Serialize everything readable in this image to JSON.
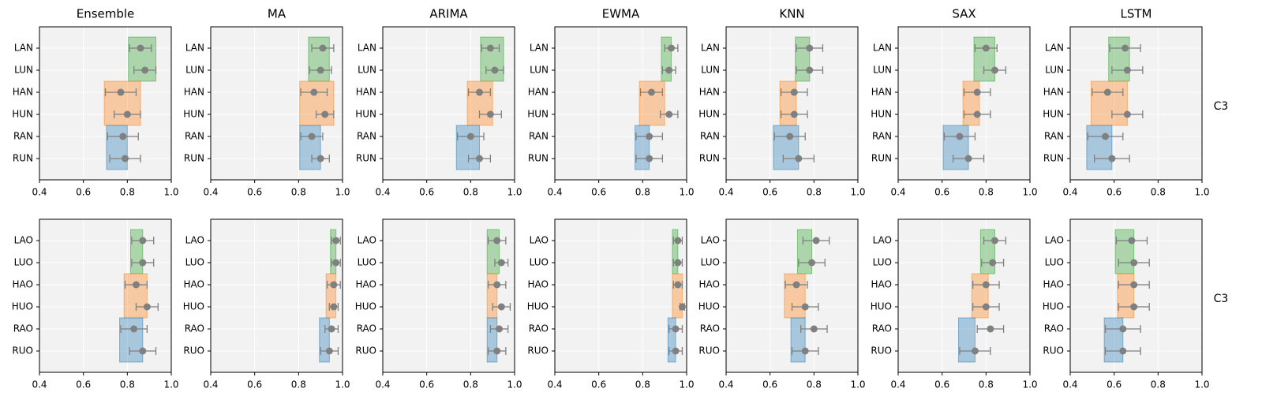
{
  "chart_data": {
    "type": "bar",
    "x_range": [
      0.4,
      1.0
    ],
    "x_ticks": [
      "0.4",
      "0.6",
      "0.8",
      "1.0"
    ],
    "grid": true,
    "colors": {
      "green": "#2ca02c",
      "orange": "#ff7f0e",
      "blue": "#1f77b4",
      "point": "#808080",
      "error": "#808080",
      "background": "#f2f2f2"
    },
    "column_titles": [
      "Ensemble",
      "MA",
      "ARIMA",
      "EWMA",
      "KNN",
      "SAX",
      "LSTM"
    ],
    "rows": [
      {
        "label": "C3",
        "categories": [
          "LAN",
          "LUN",
          "HAN",
          "HUN",
          "RAN",
          "RUN"
        ],
        "panels": [
          {
            "bars": [
              0.93,
              0.86,
              0.8
            ],
            "points": [
              [
                0.86,
                0.05
              ],
              [
                0.88,
                0.05
              ],
              [
                0.77,
                0.07
              ],
              [
                0.8,
                0.06
              ],
              [
                0.78,
                0.07
              ],
              [
                0.79,
                0.07
              ]
            ]
          },
          {
            "bars": [
              0.94,
              0.96,
              0.9
            ],
            "points": [
              [
                0.91,
                0.05
              ],
              [
                0.9,
                0.05
              ],
              [
                0.87,
                0.06
              ],
              [
                0.92,
                0.04
              ],
              [
                0.86,
                0.05
              ],
              [
                0.9,
                0.04
              ]
            ]
          },
          {
            "bars": [
              0.95,
              0.9,
              0.84
            ],
            "points": [
              [
                0.89,
                0.04
              ],
              [
                0.91,
                0.04
              ],
              [
                0.84,
                0.05
              ],
              [
                0.89,
                0.05
              ],
              [
                0.8,
                0.06
              ],
              [
                0.84,
                0.05
              ]
            ]
          },
          {
            "bars": [
              0.93,
              0.9,
              0.83
            ],
            "points": [
              [
                0.93,
                0.03
              ],
              [
                0.92,
                0.03
              ],
              [
                0.84,
                0.05
              ],
              [
                0.92,
                0.04
              ],
              [
                0.83,
                0.06
              ],
              [
                0.83,
                0.06
              ]
            ]
          },
          {
            "bars": [
              0.78,
              0.72,
              0.73
            ],
            "points": [
              [
                0.78,
                0.06
              ],
              [
                0.78,
                0.06
              ],
              [
                0.71,
                0.06
              ],
              [
                0.71,
                0.06
              ],
              [
                0.69,
                0.07
              ],
              [
                0.73,
                0.07
              ]
            ]
          },
          {
            "bars": [
              0.84,
              0.77,
              0.72
            ],
            "points": [
              [
                0.8,
                0.05
              ],
              [
                0.84,
                0.05
              ],
              [
                0.76,
                0.06
              ],
              [
                0.76,
                0.06
              ],
              [
                0.68,
                0.07
              ],
              [
                0.72,
                0.07
              ]
            ]
          },
          {
            "bars": [
              0.67,
              0.66,
              0.59
            ],
            "points": [
              [
                0.65,
                0.07
              ],
              [
                0.66,
                0.07
              ],
              [
                0.57,
                0.07
              ],
              [
                0.66,
                0.07
              ],
              [
                0.56,
                0.08
              ],
              [
                0.59,
                0.08
              ]
            ]
          }
        ]
      },
      {
        "label": "C3",
        "categories": [
          "LAO",
          "LUO",
          "HAO",
          "HUO",
          "RAO",
          "RUO"
        ],
        "panels": [
          {
            "bars": [
              0.87,
              0.89,
              0.87
            ],
            "points": [
              [
                0.87,
                0.05
              ],
              [
                0.87,
                0.05
              ],
              [
                0.84,
                0.05
              ],
              [
                0.89,
                0.05
              ],
              [
                0.83,
                0.06
              ],
              [
                0.87,
                0.06
              ]
            ]
          },
          {
            "bars": [
              0.97,
              0.97,
              0.94
            ],
            "points": [
              [
                0.97,
                0.02
              ],
              [
                0.97,
                0.02
              ],
              [
                0.96,
                0.03
              ],
              [
                0.96,
                0.02
              ],
              [
                0.95,
                0.03
              ],
              [
                0.94,
                0.04
              ]
            ]
          },
          {
            "bars": [
              0.93,
              0.92,
              0.92
            ],
            "points": [
              [
                0.92,
                0.04
              ],
              [
                0.94,
                0.03
              ],
              [
                0.92,
                0.04
              ],
              [
                0.94,
                0.04
              ],
              [
                0.93,
                0.04
              ],
              [
                0.92,
                0.04
              ]
            ]
          },
          {
            "bars": [
              0.96,
              0.98,
              0.95
            ],
            "points": [
              [
                0.96,
                0.02
              ],
              [
                0.96,
                0.02
              ],
              [
                0.96,
                0.02
              ],
              [
                0.98,
                0.01
              ],
              [
                0.95,
                0.03
              ],
              [
                0.95,
                0.03
              ]
            ]
          },
          {
            "bars": [
              0.79,
              0.76,
              0.76
            ],
            "points": [
              [
                0.81,
                0.06
              ],
              [
                0.79,
                0.06
              ],
              [
                0.72,
                0.05
              ],
              [
                0.76,
                0.06
              ],
              [
                0.8,
                0.06
              ],
              [
                0.76,
                0.06
              ]
            ]
          },
          {
            "bars": [
              0.84,
              0.81,
              0.75
            ],
            "points": [
              [
                0.84,
                0.05
              ],
              [
                0.83,
                0.05
              ],
              [
                0.8,
                0.06
              ],
              [
                0.8,
                0.06
              ],
              [
                0.82,
                0.06
              ],
              [
                0.75,
                0.07
              ]
            ]
          },
          {
            "bars": [
              0.69,
              0.69,
              0.64
            ],
            "points": [
              [
                0.68,
                0.07
              ],
              [
                0.69,
                0.07
              ],
              [
                0.69,
                0.07
              ],
              [
                0.69,
                0.07
              ],
              [
                0.64,
                0.08
              ],
              [
                0.64,
                0.08
              ]
            ]
          }
        ]
      }
    ]
  }
}
